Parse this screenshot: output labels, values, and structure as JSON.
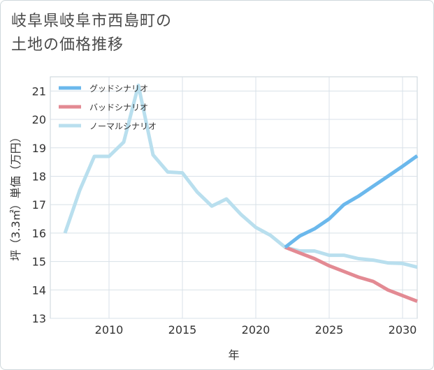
{
  "title": {
    "line1": "岐阜県岐阜市西島町の",
    "line2": "土地の価格推移"
  },
  "chart_data": {
    "type": "line",
    "xlabel": "年",
    "ylabel": "坪（3.3㎡）単価（万円）",
    "xlim": [
      2006,
      2031
    ],
    "ylim": [
      13,
      21.5
    ],
    "xticks": [
      2010,
      2015,
      2020,
      2025,
      2030
    ],
    "yticks": [
      13,
      14,
      15,
      16,
      17,
      18,
      19,
      20,
      21
    ],
    "grid": true,
    "legend_position": "top-left",
    "series": [
      {
        "name": "グッドシナリオ",
        "color": "#6bb8ec",
        "points": [
          [
            2022,
            15.5
          ],
          [
            2023,
            15.9
          ],
          [
            2024,
            16.15
          ],
          [
            2025,
            16.5
          ],
          [
            2026,
            17.0
          ],
          [
            2027,
            17.3
          ],
          [
            2028,
            17.65
          ],
          [
            2029,
            18.0
          ],
          [
            2030,
            18.35
          ],
          [
            2031,
            18.72
          ]
        ]
      },
      {
        "name": "バッドシナリオ",
        "color": "#e38a93",
        "points": [
          [
            2022,
            15.5
          ],
          [
            2023,
            15.3
          ],
          [
            2024,
            15.1
          ],
          [
            2025,
            14.85
          ],
          [
            2026,
            14.65
          ],
          [
            2027,
            14.45
          ],
          [
            2028,
            14.3
          ],
          [
            2029,
            14.0
          ],
          [
            2030,
            13.8
          ],
          [
            2031,
            13.6
          ]
        ]
      },
      {
        "name": "ノーマルシナリオ",
        "color": "#b9dfee",
        "points": [
          [
            2007,
            16.0
          ],
          [
            2008,
            17.5
          ],
          [
            2009,
            18.7
          ],
          [
            2010,
            18.7
          ],
          [
            2011,
            19.2
          ],
          [
            2012,
            21.2
          ],
          [
            2013,
            18.75
          ],
          [
            2014,
            18.15
          ],
          [
            2015,
            18.12
          ],
          [
            2016,
            17.45
          ],
          [
            2017,
            16.95
          ],
          [
            2018,
            17.2
          ],
          [
            2019,
            16.65
          ],
          [
            2020,
            16.2
          ],
          [
            2021,
            15.92
          ],
          [
            2022,
            15.5
          ],
          [
            2023,
            15.37
          ],
          [
            2024,
            15.37
          ],
          [
            2025,
            15.22
          ],
          [
            2026,
            15.22
          ],
          [
            2027,
            15.1
          ],
          [
            2028,
            15.05
          ],
          [
            2029,
            14.95
          ],
          [
            2030,
            14.93
          ],
          [
            2031,
            14.8
          ]
        ]
      }
    ]
  }
}
